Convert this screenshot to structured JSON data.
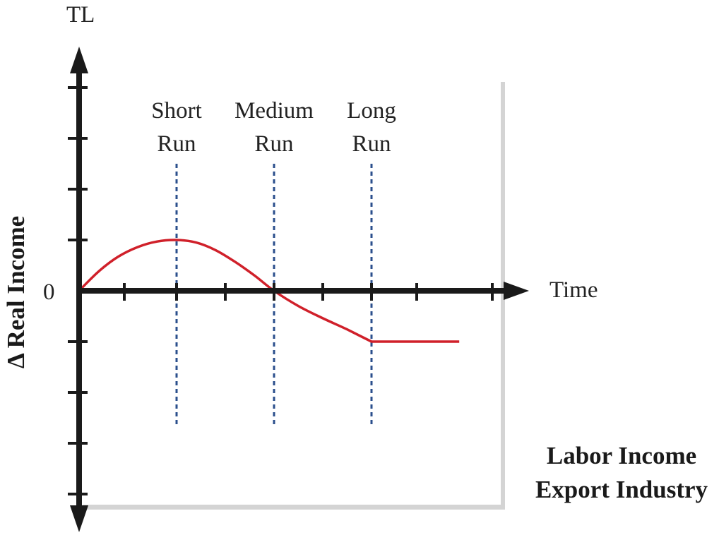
{
  "chart_data": {
    "type": "line",
    "title_lines": [
      "Labor Income",
      "Export Industry"
    ],
    "y_axis_top_label": "TL",
    "ylabel": "Δ Real Income",
    "xlabel": "Time",
    "origin_label": "0",
    "phases": [
      {
        "name": "short",
        "lines": [
          "Short",
          "Run"
        ],
        "x": 2
      },
      {
        "name": "medium",
        "lines": [
          "Medium",
          "Run"
        ],
        "x": 4
      },
      {
        "name": "long",
        "lines": [
          "Long",
          "Run"
        ],
        "x": 6
      }
    ],
    "x_ticks": [
      1,
      2,
      3,
      4,
      5,
      6,
      7,
      8
    ],
    "y_ticks": [
      -4,
      -3,
      -2,
      -1,
      1,
      2,
      3,
      4
    ],
    "xlim": [
      0,
      8.6
    ],
    "ylim": [
      -4.3,
      4.6
    ],
    "series": [
      {
        "points": [
          [
            0,
            0
          ],
          [
            0.4,
            0.38
          ],
          [
            0.8,
            0.67
          ],
          [
            1.2,
            0.86
          ],
          [
            1.6,
            0.97
          ],
          [
            2,
            1.0
          ],
          [
            2.4,
            0.95
          ],
          [
            2.8,
            0.8
          ],
          [
            3.2,
            0.57
          ],
          [
            3.6,
            0.3
          ],
          [
            4,
            0
          ],
          [
            4.5,
            -0.3
          ],
          [
            5,
            -0.54
          ],
          [
            5.5,
            -0.76
          ],
          [
            6,
            -1.0
          ],
          [
            7,
            -1.0
          ],
          [
            7.8,
            -1.0
          ]
        ],
        "color": "#d0202a"
      }
    ],
    "colors": {
      "axis": "#1a1a1a",
      "guide": "#2b4f8c",
      "curve": "#d0202a",
      "panel": "#ffffff",
      "shadow": "#b8b8b8"
    }
  }
}
